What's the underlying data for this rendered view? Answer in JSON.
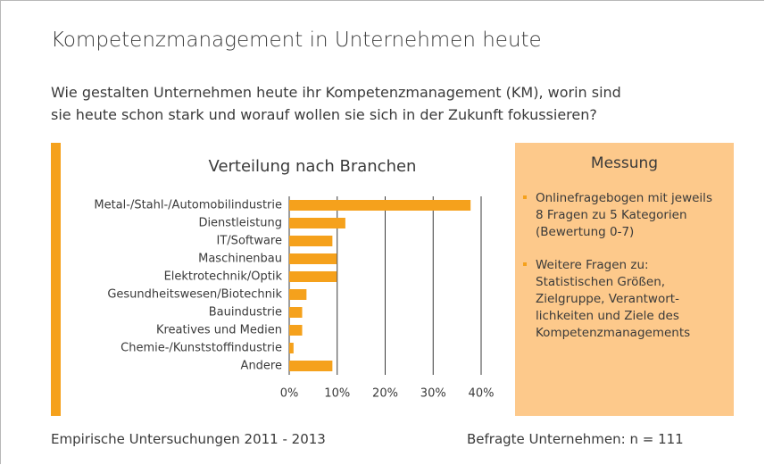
{
  "title": "Kompetenzmanagement in Unternehmen heute",
  "subtitle": [
    "Wie gestalten Unternehmen heute ihr Kompetenzmanagement (KM), worin sind",
    "sie heute schon stark und worauf wollen sie sich in der Zukunft fokussieren?"
  ],
  "chart_data": {
    "type": "hbar",
    "title": "Verteilung nach Branchen",
    "categories": [
      "Metal-/Stahl-/Automobilindustrie",
      "Dienstleistung",
      "IT/Software",
      "Maschinenbau",
      "Elektrotechnik/Optik",
      "Gesundheitswesen/Biotechnik",
      "Bauindustrie",
      "Kreatives und Medien",
      "Chemie-/Kunststoffindustrie",
      "Andere"
    ],
    "values": [
      37.8,
      11.7,
      9.0,
      9.9,
      9.9,
      3.6,
      2.7,
      2.7,
      0.9,
      9.0
    ],
    "color": "#f5a11c",
    "xlim": [
      0,
      40
    ],
    "xticks": [
      {
        "value": 0,
        "label": "0%"
      },
      {
        "value": 10,
        "label": "10%"
      },
      {
        "value": 20,
        "label": "20%"
      },
      {
        "value": 30,
        "label": "30%"
      },
      {
        "value": 40,
        "label": "40%"
      }
    ],
    "grid": true
  },
  "panel": {
    "title": "Messung",
    "items": [
      [
        "Onlinefragebogen mit jeweils",
        "8 Fragen zu 5 Kategorien",
        "(Bewertung 0-7)"
      ],
      [
        "Weitere Fragen zu:",
        "Statistischen Größen,",
        "Zielgruppe, Verantwort-",
        "lichkeiten und Ziele des",
        "Kompetenzmanagements"
      ]
    ]
  },
  "footer": {
    "left": "Empirische Untersuchungen 2011 - 2013",
    "right": "Befragte Unternehmen: n = 111"
  }
}
